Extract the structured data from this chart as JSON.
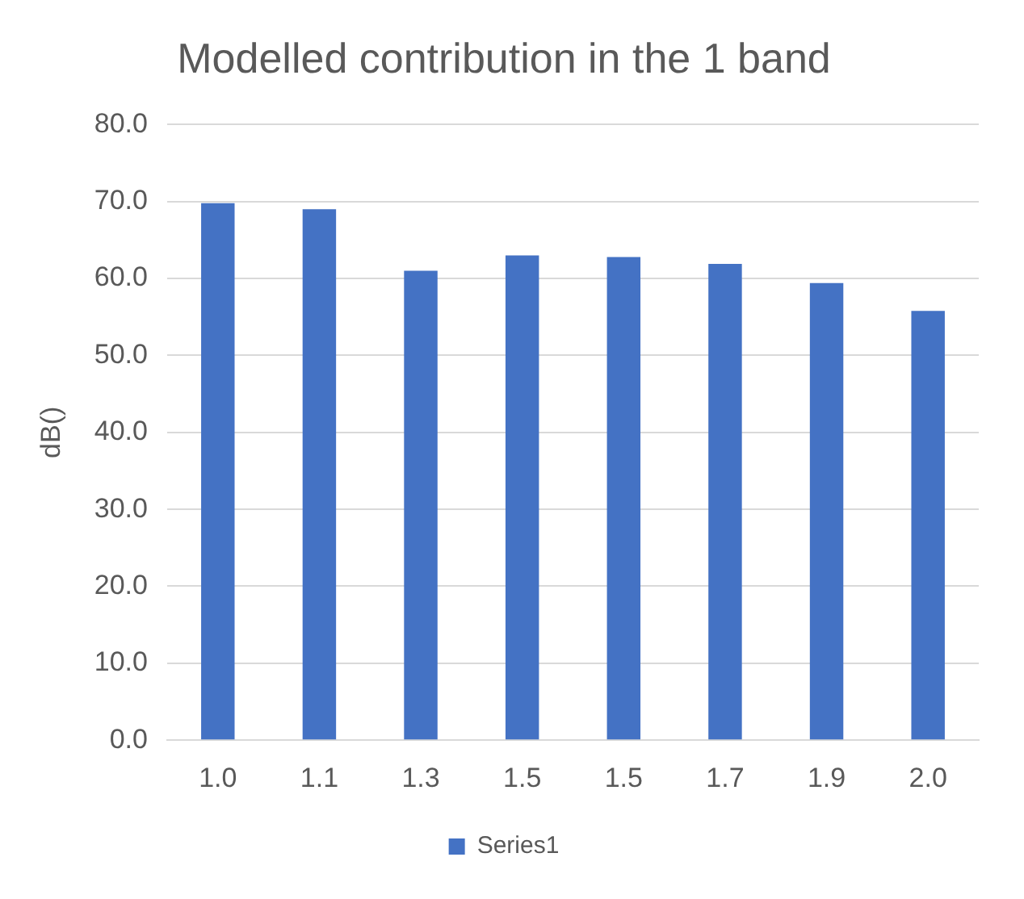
{
  "chart_data": {
    "type": "bar",
    "title": "Modelled contribution in the 1 band",
    "ylabel": "dB()",
    "categories": [
      "1.0",
      "1.1",
      "1.3",
      "1.5",
      "1.5",
      "1.7",
      "1.9",
      "2.0"
    ],
    "series": [
      {
        "name": "Series1",
        "color": "#4472c4",
        "values": [
          69.8,
          69.0,
          61.0,
          63.0,
          62.8,
          61.9,
          59.4,
          55.8
        ]
      }
    ],
    "ylim": [
      0,
      80
    ],
    "yticks": [
      {
        "value": 0,
        "label": "0.0"
      },
      {
        "value": 10,
        "label": "10.0"
      },
      {
        "value": 20,
        "label": "20.0"
      },
      {
        "value": 30,
        "label": "30.0"
      },
      {
        "value": 40,
        "label": "40.0"
      },
      {
        "value": 50,
        "label": "50.0"
      },
      {
        "value": 60,
        "label": "60.0"
      },
      {
        "value": 70,
        "label": "70.0"
      },
      {
        "value": 80,
        "label": "80.0"
      }
    ],
    "grid": "y",
    "legend": "bottom"
  }
}
